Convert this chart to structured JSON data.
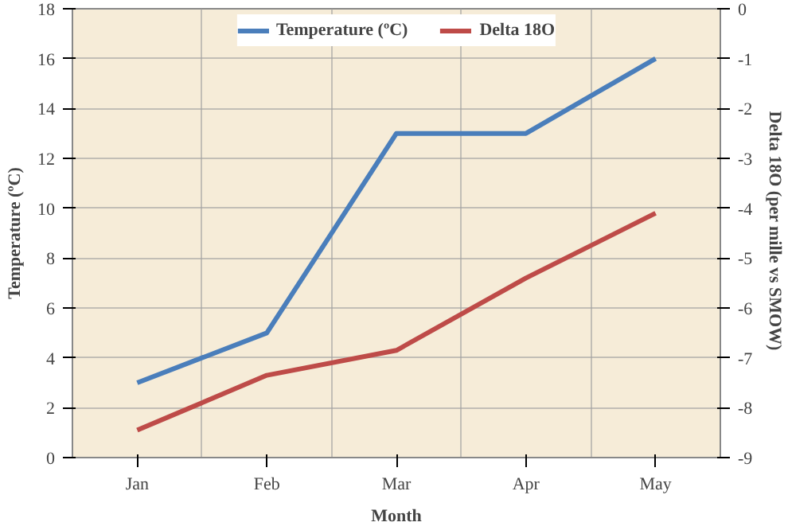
{
  "chart_data": {
    "type": "line",
    "xlabel": "Month",
    "ylabel": "Temperature (ºC)",
    "y2label": "Delta 18O  (per mille vs SMOW)",
    "categories": [
      "Jan",
      "Feb",
      "Mar",
      "Apr",
      "May"
    ],
    "series": [
      {
        "name": "Temperature (ºC)",
        "color": "#4a7ebb",
        "values": [
          3,
          5,
          13,
          13,
          16
        ]
      },
      {
        "name": "Delta 18O",
        "color": "#be4b48",
        "values": [
          -8.45,
          -7.35,
          -6.85,
          -5.4,
          -4.1
        ],
        "axis": "y2"
      }
    ],
    "ylim": [
      0,
      18
    ],
    "yticks": [
      0,
      2,
      4,
      6,
      8,
      10,
      12,
      14,
      16,
      18
    ],
    "y2lim": [
      -9,
      0
    ],
    "y2ticks": [
      -9,
      -8,
      -7,
      -6,
      -5,
      -4,
      -3,
      -2,
      -1,
      0
    ],
    "grid": true,
    "legend": "top",
    "marker": "none",
    "line_style": "solid"
  }
}
